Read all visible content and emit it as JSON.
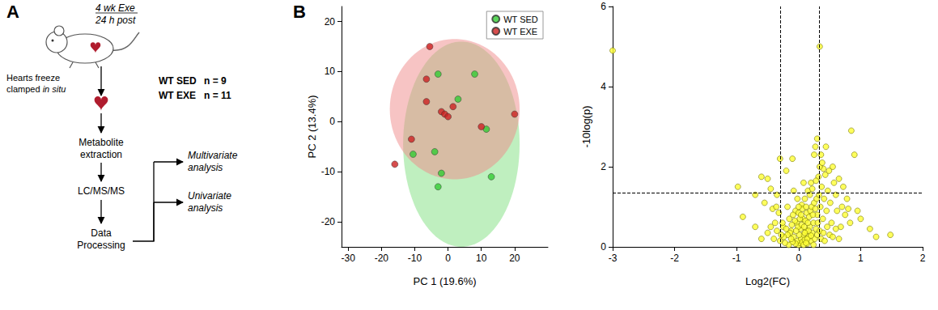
{
  "panel_labels": [
    "A",
    "B"
  ],
  "diagram": {
    "protocol": [
      "4 wk Exe",
      "24 h post"
    ],
    "sampling": {
      "line1": "Hearts freeze",
      "line2": "clamped",
      "line2_italic": "in situ"
    },
    "groups": [
      {
        "name": "WT SED",
        "n": "n = 9"
      },
      {
        "name": "WT EXE",
        "n": "n = 11"
      }
    ],
    "steps": [
      [
        "Metabolite",
        "extraction"
      ],
      [
        "LC/MS/MS"
      ],
      [
        "Data",
        "Processing"
      ]
    ],
    "outputs": [
      [
        "Multivariate",
        "analysis"
      ],
      [
        "Univariate",
        "analysis"
      ]
    ]
  },
  "chart_data": [
    {
      "type": "scatter",
      "x_label": "PC 1 (19.6%)",
      "y_label": "PC 2 (13.4%)",
      "xlim": [
        -32,
        30
      ],
      "xticks": [
        -30,
        -20,
        -10,
        0,
        10,
        20
      ],
      "ylim": [
        -25,
        23
      ],
      "yticks": [
        -20,
        -10,
        0,
        10,
        20
      ],
      "grid": false,
      "legend": "top-right",
      "marker": "circle",
      "series": [
        {
          "name": "WT SED",
          "color": "#33cc33",
          "x": [
            -3,
            8,
            3,
            -10.5,
            -4,
            -3,
            -2,
            11.5,
            13
          ],
          "values": [
            9.5,
            9.5,
            4.5,
            -6.5,
            -6,
            -13,
            -10.3,
            -1.5,
            -11
          ]
        },
        {
          "name": "WT EXE",
          "color": "#cc2020",
          "x": [
            -5.5,
            -6.5,
            -6.5,
            -2,
            -1,
            0,
            1.5,
            -11,
            -16,
            10,
            20
          ],
          "values": [
            15,
            8.5,
            4,
            2,
            1.5,
            1,
            3,
            -3.5,
            -8.5,
            -1,
            1.5
          ]
        }
      ],
      "ellipses": [
        {
          "series": "WT SED",
          "color": "#7fe07f",
          "center": [
            4,
            -4.5
          ],
          "radii": [
            17.5,
            20.5
          ]
        },
        {
          "series": "WT EXE",
          "color": "#f08a8a",
          "center": [
            2,
            2.5
          ],
          "radii": [
            19.5,
            14
          ]
        }
      ]
    },
    {
      "type": "scatter",
      "x_label": "Log2(FC)",
      "y_label": "-10log(p)",
      "xlim": [
        -3,
        2
      ],
      "xticks": [
        -3,
        -2,
        -1,
        0,
        1,
        2
      ],
      "ylim": [
        0,
        6
      ],
      "yticks": [
        0,
        2,
        4,
        6
      ],
      "grid": false,
      "marker": "circle",
      "color": "#ffff33",
      "threshold_lines": {
        "x": [
          -0.3,
          0.33
        ],
        "y": [
          1.35
        ]
      },
      "x": [
        -3.0,
        0.34,
        -0.98,
        -0.9,
        -0.6,
        -0.5,
        -0.55,
        -0.45,
        -0.42,
        -0.35,
        -0.3,
        -0.25,
        -0.2,
        -0.18,
        -0.15,
        -0.12,
        -0.1,
        -0.08,
        -0.05,
        -0.03,
        0.0,
        0.02,
        -0.02,
        0.04,
        -0.05,
        0.06,
        0.08,
        -0.08,
        0.1,
        -0.1,
        0.12,
        -0.12,
        0.14,
        -0.14,
        0.16,
        -0.16,
        0.18,
        -0.18,
        0.2,
        -0.2,
        0.22,
        -0.22,
        0.24,
        -0.24,
        0.26,
        -0.26,
        0.28,
        -0.28,
        0.3,
        0.01,
        0.03,
        -0.01,
        0.05,
        -0.04,
        0.07,
        -0.06,
        0.09,
        0.11,
        -0.09,
        0.13,
        0.15,
        -0.11,
        0.17,
        0.19,
        0.21,
        0.23,
        0.25,
        0.27,
        0.29,
        0.31,
        0.33,
        0.35,
        0.37,
        0.39,
        0.41,
        0.43,
        0.45,
        0.47,
        0.49,
        0.51,
        0.53,
        0.55,
        0.57,
        0.6,
        0.62,
        0.65,
        0.68,
        0.7,
        0.72,
        0.75,
        0.78,
        0.8,
        0.83,
        0.85,
        0.9,
        0.95,
        1.0,
        1.15,
        1.25,
        1.48,
        0.3,
        0.25,
        0.36,
        0.4,
        0.32,
        0.2,
        0.15,
        0.1,
        0.05,
        0.0,
        0.02,
        0.06,
        0.12,
        0.18,
        0.22,
        0.28,
        0.34,
        0.44,
        0.38,
        0.27,
        0.08,
        -0.02,
        0.0,
        0.04,
        0.14,
        0.16,
        0.1,
        0.08,
        0.12,
        0.2,
        0.24,
        0.3,
        0.34,
        0.36,
        0.4,
        0.42,
        0.46,
        0.5,
        0.55,
        0.6,
        0.65,
        -0.3,
        -0.35,
        -0.38,
        -0.4,
        -0.45,
        -0.5,
        -0.6,
        -0.7,
        -0.32,
        -0.36,
        -0.7
      ],
      "values": [
        4.9,
        5.0,
        1.5,
        0.75,
        1.75,
        1.7,
        1.1,
        1.45,
        0.95,
        1.3,
        2.2,
        0.5,
        1.9,
        1.0,
        0.7,
        0.4,
        2.2,
        1.4,
        0.9,
        0.6,
        0.05,
        0.1,
        0.15,
        0.2,
        0.08,
        0.12,
        0.3,
        0.25,
        0.18,
        0.12,
        0.4,
        0.2,
        0.08,
        0.35,
        0.25,
        0.05,
        0.5,
        0.3,
        0.15,
        0.45,
        0.35,
        0.1,
        0.6,
        0.25,
        0.2,
        0.6,
        0.45,
        0.3,
        0.8,
        0.3,
        0.45,
        0.5,
        0.55,
        0.4,
        0.7,
        0.65,
        0.5,
        0.65,
        0.8,
        0.85,
        0.6,
        0.55,
        0.75,
        0.9,
        1.0,
        0.8,
        1.1,
        0.95,
        1.2,
        0.6,
        1.3,
        1.0,
        1.5,
        0.7,
        1.2,
        1.8,
        0.9,
        1.4,
        1.9,
        1.1,
        0.6,
        2.0,
        1.6,
        1.3,
        0.9,
        1.7,
        0.5,
        1.0,
        1.5,
        0.8,
        1.2,
        0.95,
        0.6,
        2.9,
        2.3,
        0.9,
        0.7,
        0.45,
        0.25,
        0.3,
        2.7,
        2.3,
        2.3,
        1.95,
        1.75,
        1.6,
        1.4,
        1.2,
        1.05,
        0.85,
        0.7,
        0.95,
        1.0,
        1.3,
        1.45,
        1.65,
        2.0,
        2.5,
        2.1,
        2.5,
        1.6,
        1.2,
        1.0,
        0.8,
        0.2,
        0.4,
        0.35,
        0.05,
        0.1,
        0.28,
        0.05,
        0.3,
        0.4,
        0.2,
        0.35,
        0.15,
        0.5,
        0.3,
        0.25,
        0.45,
        0.2,
        0.15,
        0.4,
        0.6,
        0.2,
        0.5,
        0.35,
        0.2,
        0.5,
        0.85,
        1.0,
        1.3
      ]
    }
  ]
}
